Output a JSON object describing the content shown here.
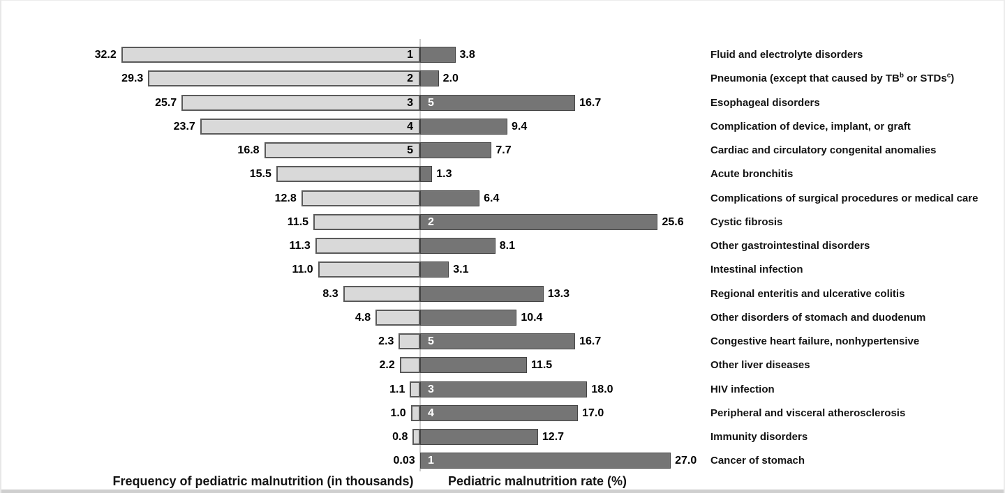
{
  "chart_data": {
    "type": "bar",
    "variant": "diverging-horizontal-tornado",
    "left_axis_label": "Frequency of pediatric malnutrition (in thousands)",
    "right_axis_label": "Pediatric malnutrition rate (%)",
    "legend_position": "none",
    "grid": false,
    "left_axis_max": 32.2,
    "right_axis_max": 27.0,
    "colors": {
      "left_bar_fill": "#d9d9d9",
      "left_bar_border": "#5a5a5a",
      "right_bar_fill": "#757575",
      "right_bar_border": "#454545",
      "axis_line": "#cccccc",
      "text": "#000000"
    },
    "rows": [
      {
        "label": "Fluid and electrolyte disorders",
        "freq": 32.2,
        "freq_label": "32.2",
        "freq_rank": "1",
        "rate": 3.8,
        "rate_label": "3.8",
        "rate_rank": ""
      },
      {
        "label": "Pneumonia (except that caused by TB^b or STDs^c)",
        "freq": 29.3,
        "freq_label": "29.3",
        "freq_rank": "2",
        "rate": 2.0,
        "rate_label": "2.0",
        "rate_rank": ""
      },
      {
        "label": "Esophageal disorders",
        "freq": 25.7,
        "freq_label": "25.7",
        "freq_rank": "3",
        "rate": 16.7,
        "rate_label": "16.7",
        "rate_rank": "5"
      },
      {
        "label": "Complication of device, implant, or graft",
        "freq": 23.7,
        "freq_label": "23.7",
        "freq_rank": "4",
        "rate": 9.4,
        "rate_label": "9.4",
        "rate_rank": ""
      },
      {
        "label": "Cardiac and circulatory congenital anomalies",
        "freq": 16.8,
        "freq_label": "16.8",
        "freq_rank": "5",
        "rate": 7.7,
        "rate_label": "7.7",
        "rate_rank": ""
      },
      {
        "label": "Acute bronchitis",
        "freq": 15.5,
        "freq_label": "15.5",
        "freq_rank": "",
        "rate": 1.3,
        "rate_label": "1.3",
        "rate_rank": ""
      },
      {
        "label": "Complications of surgical procedures or medical care",
        "freq": 12.8,
        "freq_label": "12.8",
        "freq_rank": "",
        "rate": 6.4,
        "rate_label": "6.4",
        "rate_rank": ""
      },
      {
        "label": "Cystic fibrosis",
        "freq": 11.5,
        "freq_label": "11.5",
        "freq_rank": "",
        "rate": 25.6,
        "rate_label": "25.6",
        "rate_rank": "2"
      },
      {
        "label": "Other gastrointestinal disorders",
        "freq": 11.3,
        "freq_label": "11.3",
        "freq_rank": "",
        "rate": 8.1,
        "rate_label": "8.1",
        "rate_rank": ""
      },
      {
        "label": "Intestinal infection",
        "freq": 11.0,
        "freq_label": "11.0",
        "freq_rank": "",
        "rate": 3.1,
        "rate_label": "3.1",
        "rate_rank": ""
      },
      {
        "label": "Regional enteritis and ulcerative colitis",
        "freq": 8.3,
        "freq_label": "8.3",
        "freq_rank": "",
        "rate": 13.3,
        "rate_label": "13.3",
        "rate_rank": ""
      },
      {
        "label": "Other disorders of stomach and duodenum",
        "freq": 4.8,
        "freq_label": "4.8",
        "freq_rank": "",
        "rate": 10.4,
        "rate_label": "10.4",
        "rate_rank": ""
      },
      {
        "label": "Congestive heart failure, nonhypertensive",
        "freq": 2.3,
        "freq_label": "2.3",
        "freq_rank": "",
        "rate": 16.7,
        "rate_label": "16.7",
        "rate_rank": "5"
      },
      {
        "label": "Other liver diseases",
        "freq": 2.2,
        "freq_label": "2.2",
        "freq_rank": "",
        "rate": 11.5,
        "rate_label": "11.5",
        "rate_rank": ""
      },
      {
        "label": "HIV infection",
        "freq": 1.1,
        "freq_label": "1.1",
        "freq_rank": "",
        "rate": 18.0,
        "rate_label": "18.0",
        "rate_rank": "3"
      },
      {
        "label": "Peripheral and visceral atherosclerosis",
        "freq": 1.0,
        "freq_label": "1.0",
        "freq_rank": "",
        "rate": 17.0,
        "rate_label": "17.0",
        "rate_rank": "4"
      },
      {
        "label": "Immunity disorders",
        "freq": 0.8,
        "freq_label": "0.8",
        "freq_rank": "",
        "rate": 12.7,
        "rate_label": "12.7",
        "rate_rank": ""
      },
      {
        "label": "Cancer of stomach",
        "freq": 0.03,
        "freq_label": "0.03",
        "freq_rank": "",
        "rate": 27.0,
        "rate_label": "27.0",
        "rate_rank": "1"
      }
    ]
  }
}
